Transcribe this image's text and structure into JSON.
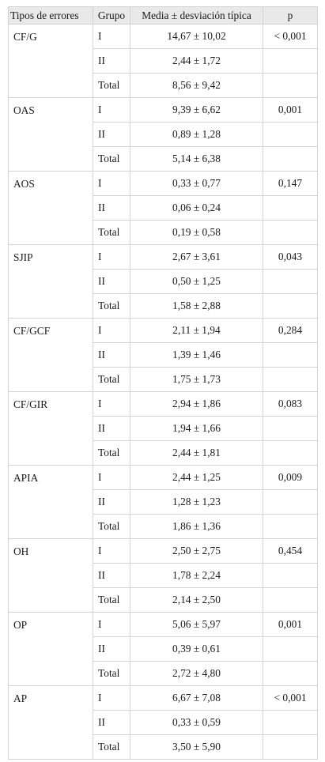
{
  "headers": [
    "Tipos de errores",
    "Grupo",
    "Media ± desviación típica",
    "p"
  ],
  "rows": [
    {
      "tipo": "CF/G",
      "p": "< 0,001",
      "groups": [
        {
          "grupo": "I",
          "media": "14,67 ± 10,02"
        },
        {
          "grupo": "II",
          "media": "2,44 ± 1,72"
        },
        {
          "grupo": "Total",
          "media": "8,56 ± 9,42"
        }
      ]
    },
    {
      "tipo": "OAS",
      "p": "0,001",
      "groups": [
        {
          "grupo": "I",
          "media": "9,39 ± 6,62"
        },
        {
          "grupo": "II",
          "media": "0,89 ± 1,28"
        },
        {
          "grupo": "Total",
          "media": "5,14 ± 6,38"
        }
      ]
    },
    {
      "tipo": "AOS",
      "p": "0,147",
      "groups": [
        {
          "grupo": "I",
          "media": "0,33 ± 0,77"
        },
        {
          "grupo": "II",
          "media": "0,06 ± 0,24"
        },
        {
          "grupo": "Total",
          "media": "0,19 ± 0,58"
        }
      ]
    },
    {
      "tipo": "SJIP",
      "p": "0,043",
      "groups": [
        {
          "grupo": "I",
          "media": "2,67 ± 3,61"
        },
        {
          "grupo": "II",
          "media": "0,50 ± 1,25"
        },
        {
          "grupo": "Total",
          "media": "1,58 ± 2,88"
        }
      ]
    },
    {
      "tipo": "CF/GCF",
      "p": "0,284",
      "groups": [
        {
          "grupo": "I",
          "media": "2,11 ± 1,94"
        },
        {
          "grupo": "II",
          "media": "1,39 ± 1,46"
        },
        {
          "grupo": "Total",
          "media": "1,75 ± 1,73"
        }
      ]
    },
    {
      "tipo": "CF/GIR",
      "p": "0,083",
      "groups": [
        {
          "grupo": "I",
          "media": "2,94 ± 1,86"
        },
        {
          "grupo": "II",
          "media": "1,94 ± 1,66"
        },
        {
          "grupo": "Total",
          "media": "2,44 ± 1,81"
        }
      ]
    },
    {
      "tipo": "APIA",
      "p": "0,009",
      "groups": [
        {
          "grupo": "I",
          "media": "2,44 ± 1,25"
        },
        {
          "grupo": "II",
          "media": "1,28 ± 1,23"
        },
        {
          "grupo": "Total",
          "media": "1,86 ± 1,36"
        }
      ]
    },
    {
      "tipo": "OH",
      "p": "0,454",
      "groups": [
        {
          "grupo": "I",
          "media": "2,50 ± 2,75"
        },
        {
          "grupo": "II",
          "media": "1,78 ± 2,24"
        },
        {
          "grupo": "Total",
          "media": "2,14 ± 2,50"
        }
      ]
    },
    {
      "tipo": "OP",
      "p": "0,001",
      "groups": [
        {
          "grupo": "I",
          "media": "5,06 ± 5,97"
        },
        {
          "grupo": "II",
          "media": "0,39 ± 0,61"
        },
        {
          "grupo": "Total",
          "media": "2,72 ± 4,80"
        }
      ]
    },
    {
      "tipo": "AP",
      "p": "< 0,001",
      "groups": [
        {
          "grupo": "I",
          "media": "6,67 ± 7,08"
        },
        {
          "grupo": "II",
          "media": "0,33 ± 0,59"
        },
        {
          "grupo": "Total",
          "media": "3,50 ± 5,90"
        }
      ]
    }
  ]
}
